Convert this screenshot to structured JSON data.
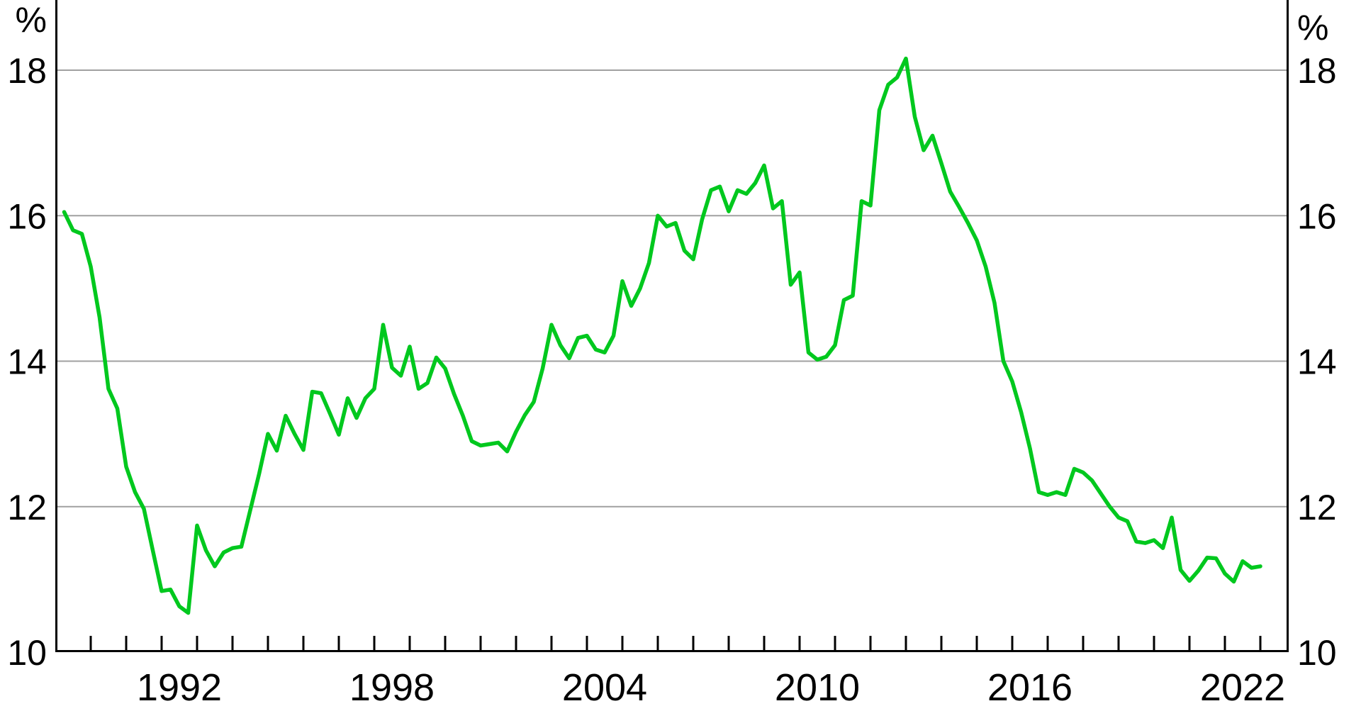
{
  "chart_data": {
    "type": "line",
    "unit_label_left": "%",
    "unit_label_right": "%",
    "y_axis": {
      "tick_values": [
        18,
        16,
        14,
        12,
        10
      ],
      "tick_labels": [
        "18",
        "16",
        "14",
        "12",
        "10"
      ],
      "gridline_values": [
        18,
        16,
        14,
        12
      ],
      "ylim": [
        10,
        18.95
      ]
    },
    "x_axis": {
      "year_labels": [
        "1992",
        "1998",
        "2004",
        "2010",
        "2016",
        "2022"
      ],
      "minor_tick_first_year": 1990,
      "minor_tick_last_year": 2023,
      "xlim_years": [
        1989.0,
        2023.8
      ]
    },
    "legend": "none",
    "grid": "horizontal-only",
    "series": [
      {
        "name": "quarterly-percent-series",
        "color": "#00c81e",
        "start": "1989Q1",
        "frequency": "quarterly",
        "values": [
          16.05,
          15.8,
          15.75,
          15.3,
          14.6,
          13.62,
          13.35,
          12.55,
          12.2,
          11.97,
          11.4,
          10.84,
          10.86,
          10.63,
          10.54,
          11.74,
          11.4,
          11.18,
          11.37,
          11.43,
          11.45,
          11.95,
          12.45,
          13.0,
          12.77,
          13.25,
          13.0,
          12.78,
          13.58,
          13.56,
          13.28,
          12.99,
          13.49,
          13.22,
          13.49,
          13.62,
          14.5,
          13.91,
          13.8,
          14.2,
          13.62,
          13.7,
          14.05,
          13.9,
          13.55,
          13.25,
          12.9,
          12.84,
          12.86,
          12.88,
          12.76,
          13.03,
          13.26,
          13.44,
          13.9,
          14.5,
          14.22,
          14.04,
          14.32,
          14.35,
          14.16,
          14.12,
          14.35,
          15.1,
          14.76,
          15.0,
          15.35,
          16.0,
          15.85,
          15.9,
          15.52,
          15.4,
          15.95,
          16.35,
          16.4,
          16.06,
          16.35,
          16.3,
          16.45,
          16.69,
          16.1,
          16.2,
          15.05,
          15.22,
          14.12,
          14.02,
          14.06,
          14.22,
          14.84,
          14.9,
          16.2,
          16.14,
          17.45,
          17.8,
          17.9,
          18.16,
          17.36,
          16.9,
          17.1,
          16.72,
          16.33,
          16.12,
          15.9,
          15.66,
          15.3,
          14.8,
          14.0,
          13.72,
          13.3,
          12.8,
          12.2,
          12.16,
          12.2,
          12.16,
          12.52,
          12.47,
          12.36,
          12.18,
          12.0,
          11.85,
          11.8,
          11.52,
          11.5,
          11.54,
          11.43,
          11.85,
          11.13,
          10.98,
          11.12,
          11.3,
          11.29,
          11.08,
          10.97,
          11.25,
          11.16,
          11.18
        ]
      }
    ]
  },
  "colors": {
    "line_green": "#00c81e",
    "gridline_gray": "#a0a0a0",
    "axis_black": "#000000",
    "background": "#ffffff"
  }
}
